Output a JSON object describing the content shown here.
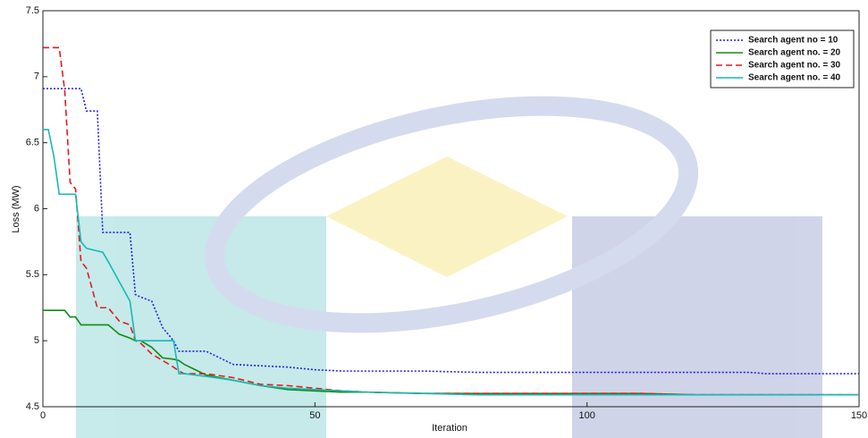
{
  "chart_data": {
    "type": "line",
    "xlabel": "Iteration",
    "ylabel": "Loss (MW)",
    "x": [
      0,
      1,
      2,
      3,
      4,
      5,
      6,
      7,
      8,
      10,
      11,
      12,
      14,
      16,
      17,
      18,
      20,
      22,
      24,
      25,
      26,
      28,
      30,
      35,
      40,
      45,
      50,
      55,
      60,
      70,
      80,
      90,
      100,
      110,
      120,
      130,
      133,
      140,
      150
    ],
    "series": [
      {
        "name": "Search agent no  = 10",
        "color": "#1f1fe8",
        "style": "dotted",
        "values": [
          6.91,
          6.91,
          6.91,
          6.91,
          6.91,
          6.91,
          6.91,
          6.91,
          6.74,
          6.74,
          5.82,
          5.82,
          5.82,
          5.82,
          5.35,
          5.33,
          5.3,
          5.1,
          5.0,
          4.92,
          4.92,
          4.92,
          4.92,
          4.82,
          4.81,
          4.8,
          4.78,
          4.77,
          4.77,
          4.77,
          4.76,
          4.76,
          4.76,
          4.76,
          4.76,
          4.76,
          4.75,
          4.75,
          4.75
        ]
      },
      {
        "name": "Search agent no. = 20",
        "color": "#138a13",
        "style": "solid",
        "values": [
          5.23,
          5.23,
          5.23,
          5.23,
          5.23,
          5.18,
          5.18,
          5.12,
          5.12,
          5.12,
          5.12,
          5.12,
          5.05,
          5.02,
          5.0,
          5.0,
          4.95,
          4.87,
          4.86,
          4.85,
          4.82,
          4.78,
          4.74,
          4.7,
          4.66,
          4.63,
          4.62,
          4.61,
          4.61,
          4.6,
          4.6,
          4.6,
          4.6,
          4.6,
          4.59,
          4.59,
          4.59,
          4.59,
          4.59
        ]
      },
      {
        "name": "Search agent no. = 30",
        "color": "#e41a1a",
        "style": "dashed",
        "values": [
          7.22,
          7.22,
          7.22,
          7.22,
          6.9,
          6.2,
          6.15,
          5.6,
          5.55,
          5.25,
          5.25,
          5.25,
          5.15,
          5.12,
          5.0,
          4.98,
          4.9,
          4.85,
          4.8,
          4.77,
          4.75,
          4.75,
          4.75,
          4.72,
          4.67,
          4.66,
          4.64,
          4.62,
          4.61,
          4.6,
          4.6,
          4.6,
          4.6,
          4.6,
          4.59,
          4.59,
          4.59,
          4.59,
          4.59
        ]
      },
      {
        "name": "Search agent no. = 40",
        "color": "#18b8b8",
        "style": "solid",
        "values": [
          6.6,
          6.6,
          6.4,
          6.11,
          6.11,
          6.11,
          6.11,
          5.75,
          5.7,
          5.68,
          5.67,
          5.6,
          5.45,
          5.3,
          5.0,
          5.0,
          5.0,
          5.0,
          5.0,
          4.75,
          4.75,
          4.74,
          4.73,
          4.7,
          4.66,
          4.64,
          4.63,
          4.62,
          4.61,
          4.6,
          4.59,
          4.59,
          4.59,
          4.59,
          4.59,
          4.59,
          4.59,
          4.59,
          4.59
        ]
      }
    ],
    "xlim": [
      0,
      150
    ],
    "xticks": [
      0,
      50,
      100,
      150
    ],
    "ylim": [
      4.5,
      7.5
    ],
    "yticks": [
      4.5,
      5,
      5.5,
      6,
      6.5,
      7,
      7.5
    ],
    "legend": "upper right"
  }
}
